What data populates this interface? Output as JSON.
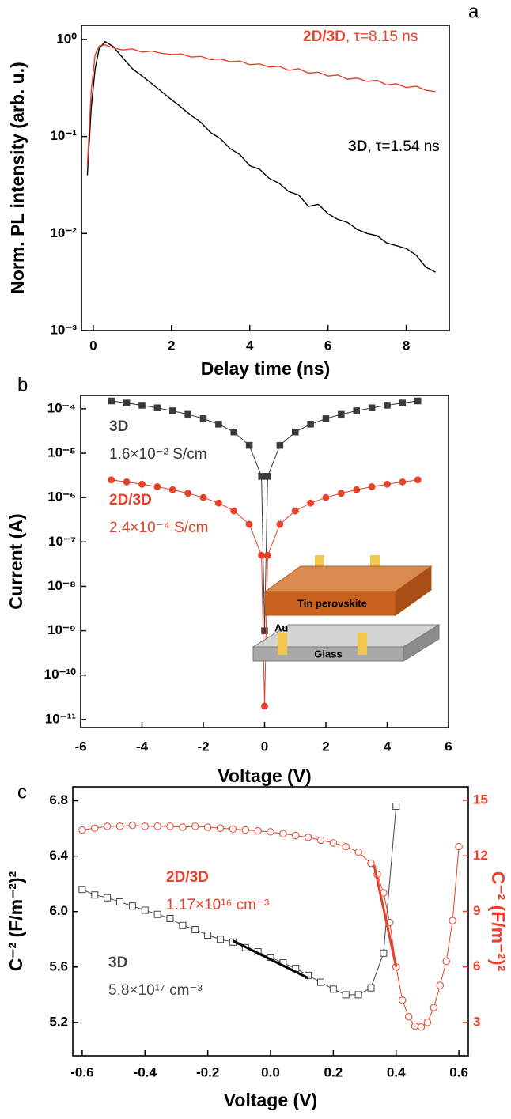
{
  "chart_data": [
    {
      "type": "line",
      "panel_label": "a",
      "xlabel": "Delay time  (ns)",
      "ylabel": "Norm. PL intensity (arb. u.)",
      "xlim": [
        -0.3,
        9.1
      ],
      "ylim": [
        0.001,
        1.4
      ],
      "y_scale": "log",
      "xticks": [
        0,
        2,
        4,
        6,
        8
      ],
      "yticks": [
        {
          "value": 1,
          "label": "10⁰"
        },
        {
          "value": 0.1,
          "label": "10⁻¹"
        },
        {
          "value": 0.01,
          "label": "10⁻²"
        },
        {
          "value": 0.001,
          "label": "10⁻³"
        }
      ],
      "x": [
        -0.15,
        -0.05,
        0.05,
        0.15,
        0.3,
        0.5,
        0.75,
        1,
        1.25,
        1.5,
        1.75,
        2,
        2.25,
        2.5,
        2.75,
        3,
        3.25,
        3.5,
        3.75,
        4,
        4.25,
        4.5,
        4.75,
        5,
        5.25,
        5.5,
        5.75,
        6,
        6.25,
        6.5,
        6.75,
        7,
        7.25,
        7.5,
        7.75,
        8,
        8.25,
        8.5,
        8.75
      ],
      "series": [
        {
          "name": "3D",
          "note": ", τ=1.54 ns",
          "color": "#000000",
          "values": [
            0.04,
            0.2,
            0.5,
            0.8,
            0.95,
            0.85,
            0.65,
            0.5,
            0.42,
            0.35,
            0.29,
            0.24,
            0.2,
            0.165,
            0.14,
            0.11,
            0.095,
            0.075,
            0.065,
            0.05,
            0.046,
            0.037,
            0.033,
            0.027,
            0.025,
            0.019,
            0.02,
            0.016,
            0.014,
            0.013,
            0.011,
            0.01,
            0.0095,
            0.008,
            0.0075,
            0.007,
            0.006,
            0.0045,
            0.004
          ]
        },
        {
          "name": "2D/3D",
          "note": ", τ=8.15 ns",
          "color": "#e8402a",
          "values": [
            0.05,
            0.3,
            0.7,
            0.85,
            0.88,
            0.82,
            0.78,
            0.8,
            0.74,
            0.76,
            0.72,
            0.7,
            0.71,
            0.66,
            0.67,
            0.62,
            0.63,
            0.59,
            0.6,
            0.55,
            0.56,
            0.52,
            0.53,
            0.48,
            0.5,
            0.45,
            0.46,
            0.42,
            0.43,
            0.39,
            0.4,
            0.37,
            0.38,
            0.34,
            0.35,
            0.32,
            0.33,
            0.3,
            0.29
          ]
        }
      ]
    },
    {
      "type": "line",
      "panel_label": "b",
      "xlabel": "Voltage (V)",
      "ylabel": "Current (A)",
      "xlim": [
        -6,
        6
      ],
      "ylim": [
        6.6e-12,
        0.0002
      ],
      "y_scale": "log",
      "xticks": [
        -6,
        -4,
        -2,
        0,
        2,
        4,
        6
      ],
      "yticks": [
        {
          "value": 0.0001,
          "label": "10⁻⁴"
        },
        {
          "value": 1e-05,
          "label": "10⁻⁵"
        },
        {
          "value": 1e-06,
          "label": "10⁻⁶"
        },
        {
          "value": 1e-07,
          "label": "10⁻⁷"
        },
        {
          "value": 1e-08,
          "label": "10⁻⁸"
        },
        {
          "value": 1e-09,
          "label": "10⁻⁹"
        },
        {
          "value": 1e-10,
          "label": "10⁻¹⁰"
        },
        {
          "value": 1e-11,
          "label": "10⁻¹¹"
        }
      ],
      "x": [
        -5,
        -4.5,
        -4,
        -3.5,
        -3,
        -2.5,
        -2,
        -1.5,
        -1,
        -0.5,
        -0.1,
        0,
        0.1,
        0.5,
        1,
        1.5,
        2,
        2.5,
        3,
        3.5,
        4,
        4.5,
        5
      ],
      "series": [
        {
          "name": "3D",
          "note": "1.6×10⁻² S/cm",
          "color": "#3a3a3a",
          "marker": "square",
          "marker_fill": "filled",
          "values": [
            0.00015,
            0.000135,
            0.00012,
            0.000105,
            9e-05,
            7.5e-05,
            6e-05,
            4.5e-05,
            3e-05,
            1.5e-05,
            3e-06,
            1e-09,
            3e-06,
            1.5e-05,
            3e-05,
            4.5e-05,
            6e-05,
            7.5e-05,
            9e-05,
            0.000105,
            0.00012,
            0.000135,
            0.00015
          ]
        },
        {
          "name": "2D/3D",
          "note": "2.4×10⁻⁴ S/cm",
          "color": "#e8402a",
          "marker": "circle",
          "marker_fill": "filled",
          "values": [
            2.5e-06,
            2.25e-06,
            2e-06,
            1.75e-06,
            1.5e-06,
            1.25e-06,
            1e-06,
            7.5e-07,
            5e-07,
            2.5e-07,
            5e-08,
            2e-11,
            5e-08,
            2.5e-07,
            5e-07,
            7.5e-07,
            1e-06,
            1.25e-06,
            1.5e-06,
            1.75e-06,
            2e-06,
            2.25e-06,
            2.5e-06
          ]
        }
      ],
      "inset_labels": {
        "film": "Tin perovskite",
        "electrode": "Au",
        "substrate": "Glass"
      }
    },
    {
      "type": "line",
      "panel_label": "c",
      "xlabel": "Voltage (V)",
      "ylabel": "C⁻² (F/m⁻²)²",
      "y2label": "C⁻² (F/m⁻²)²",
      "xlim": [
        -0.63,
        0.63
      ],
      "ylim": [
        4.96,
        6.9
      ],
      "y2lim": [
        1.2,
        15.73
      ],
      "xticks": [
        -0.6,
        -0.4,
        -0.2,
        {
          "value": 0,
          "label": "0.0"
        },
        0.2,
        0.4,
        0.6
      ],
      "yticks": [
        5.2,
        5.6,
        {
          "value": 6,
          "label": "6.0"
        },
        6.4,
        6.8
      ],
      "y2ticks": [
        3,
        6,
        9,
        12,
        15
      ],
      "series": [
        {
          "name": "3D",
          "note": "5.8×10¹⁷ cm⁻³",
          "color": "#444444",
          "marker": "square",
          "marker_fill": "open",
          "x": [
            -0.6,
            -0.56,
            -0.52,
            -0.48,
            -0.44,
            -0.4,
            -0.36,
            -0.32,
            -0.28,
            -0.24,
            -0.2,
            -0.16,
            -0.12,
            -0.08,
            -0.04,
            0,
            0.04,
            0.08,
            0.12,
            0.16,
            0.2,
            0.24,
            0.28,
            0.32,
            0.36,
            0.4
          ],
          "values": [
            6.16,
            6.12,
            6.1,
            6.07,
            6.04,
            6.01,
            5.98,
            5.95,
            5.9,
            5.87,
            5.83,
            5.8,
            5.78,
            5.74,
            5.71,
            5.67,
            5.63,
            5.59,
            5.54,
            5.49,
            5.44,
            5.4,
            5.4,
            5.45,
            5.7,
            6.76
          ]
        },
        {
          "name": "2D/3D",
          "note": "1.17×10¹⁶ cm⁻³",
          "color": "#e8402a",
          "marker": "circle",
          "marker_fill": "open",
          "axis": "y2",
          "x": [
            -0.6,
            -0.56,
            -0.52,
            -0.48,
            -0.44,
            -0.4,
            -0.36,
            -0.32,
            -0.28,
            -0.24,
            -0.2,
            -0.16,
            -0.12,
            -0.08,
            -0.04,
            0,
            0.04,
            0.08,
            0.12,
            0.16,
            0.2,
            0.24,
            0.28,
            0.32,
            0.34,
            0.36,
            0.38,
            0.4,
            0.42,
            0.44,
            0.46,
            0.48,
            0.5,
            0.52,
            0.54,
            0.56,
            0.58,
            0.6
          ],
          "values": [
            13.4,
            13.5,
            13.6,
            13.6,
            13.65,
            13.6,
            13.6,
            13.6,
            13.55,
            13.6,
            13.55,
            13.5,
            13.45,
            13.4,
            13.35,
            13.3,
            13.2,
            13.1,
            13.0,
            12.85,
            12.7,
            12.5,
            12.2,
            11.6,
            11.0,
            10.0,
            8.4,
            6.0,
            4.2,
            3.3,
            2.8,
            2.75,
            3.0,
            3.8,
            5.0,
            6.3,
            8.5,
            12.5
          ]
        }
      ],
      "fits": [
        {
          "color": "#000000",
          "x": [
            -0.12,
            0.12
          ],
          "values": [
            5.79,
            5.52
          ]
        },
        {
          "color": "#e8402a",
          "axis": "y2",
          "x": [
            0.33,
            0.4
          ],
          "values": [
            11.5,
            6.0
          ]
        }
      ]
    }
  ]
}
